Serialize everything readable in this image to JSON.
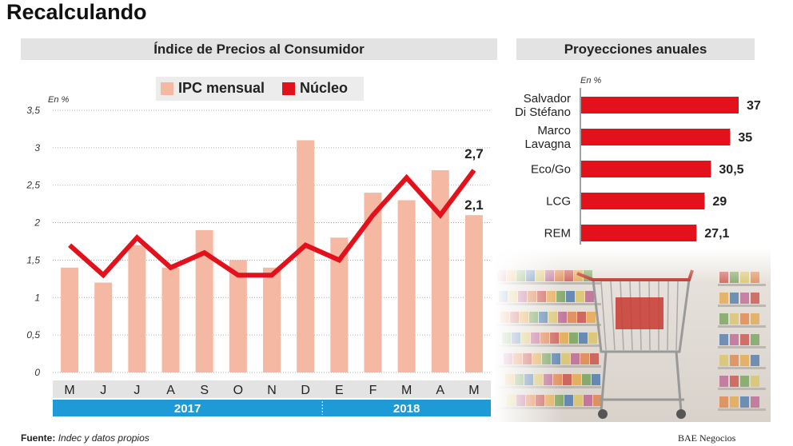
{
  "title": "Recalculando",
  "footer": {
    "source_label": "Fuente:",
    "source_text": "Indec y datos propios",
    "brand": "BAE Negocios"
  },
  "chart_data": [
    {
      "type": "bar",
      "title": "Índice de Precios al Consumidor",
      "unit_label": "En %",
      "categories": [
        "M",
        "J",
        "J",
        "A",
        "S",
        "O",
        "N",
        "D",
        "E",
        "F",
        "M",
        "A",
        "M"
      ],
      "years": [
        {
          "label": "2017",
          "from": 0,
          "to": 7
        },
        {
          "label": "2018",
          "from": 8,
          "to": 12
        }
      ],
      "ylim": [
        0,
        3.5
      ],
      "yticks": [
        "0",
        "0,5",
        "1",
        "1,5",
        "2",
        "2,5",
        "3",
        "3,5"
      ],
      "series": [
        {
          "name": "IPC mensual",
          "type": "bar",
          "color": "#f5b8a2",
          "values": [
            1.4,
            1.2,
            1.7,
            1.4,
            1.9,
            1.5,
            1.4,
            3.1,
            1.8,
            2.4,
            2.3,
            2.7,
            2.1
          ]
        },
        {
          "name": "Núcleo",
          "type": "line",
          "color": "#e3111b",
          "values": [
            1.7,
            1.3,
            1.8,
            1.4,
            1.6,
            1.3,
            1.3,
            1.7,
            1.5,
            2.1,
            2.6,
            2.1,
            2.7
          ]
        }
      ],
      "labels": {
        "last_line": "2,7",
        "last_bar": "2,1"
      }
    },
    {
      "type": "bar",
      "orientation": "horizontal",
      "title": "Proyecciones anuales",
      "unit_label": "En %",
      "categories": [
        [
          "Salvador",
          "Di Stéfano"
        ],
        [
          "Marco",
          "Lavagna"
        ],
        [
          "Eco/Go"
        ],
        [
          "LCG"
        ],
        [
          "REM"
        ]
      ],
      "values": [
        37,
        35,
        30.5,
        29,
        27.1
      ],
      "value_labels": [
        "37",
        "35",
        "30,5",
        "29",
        "27,1"
      ],
      "color": "#e3111b"
    }
  ]
}
